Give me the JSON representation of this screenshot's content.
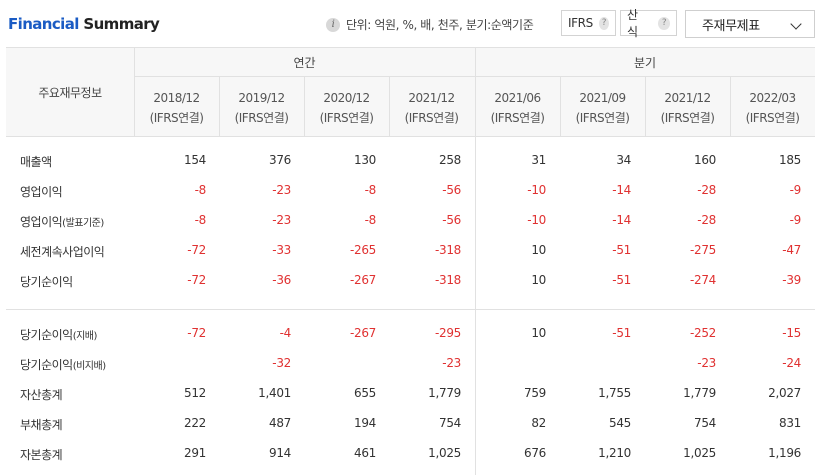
{
  "header": {
    "title_part1": "Financial",
    "title_part2": "Summary",
    "unit_text": "단위: 억원, %, 배, 천주, 분기:순액기준",
    "ifrs_label": "IFRS",
    "calc_label": "산식",
    "help_glyph": "?",
    "select_value": "주재무제표",
    "info_glyph": "i"
  },
  "table": {
    "row_header_label": "주요재무정보",
    "groups": [
      "연간",
      "분기"
    ],
    "columns": [
      {
        "period": "2018/12",
        "basis": "(IFRS연결)"
      },
      {
        "period": "2019/12",
        "basis": "(IFRS연결)"
      },
      {
        "period": "2020/12",
        "basis": "(IFRS연결)"
      },
      {
        "period": "2021/12",
        "basis": "(IFRS연결)"
      },
      {
        "period": "2021/06",
        "basis": "(IFRS연결)"
      },
      {
        "period": "2021/09",
        "basis": "(IFRS연결)"
      },
      {
        "period": "2021/12",
        "basis": "(IFRS연결)"
      },
      {
        "period": "2022/03",
        "basis": "(IFRS연결)"
      }
    ],
    "rows": [
      {
        "label": "매출액",
        "suffix": "",
        "values": [
          "154",
          "376",
          "130",
          "258",
          "31",
          "34",
          "160",
          "185"
        ]
      },
      {
        "label": "영업이익",
        "suffix": "",
        "values": [
          "-8",
          "-23",
          "-8",
          "-56",
          "-10",
          "-14",
          "-28",
          "-9"
        ]
      },
      {
        "label": "영업이익",
        "suffix": "(발표기준)",
        "values": [
          "-8",
          "-23",
          "-8",
          "-56",
          "-10",
          "-14",
          "-28",
          "-9"
        ]
      },
      {
        "label": "세전계속사업이익",
        "suffix": "",
        "values": [
          "-72",
          "-33",
          "-265",
          "-318",
          "10",
          "-51",
          "-275",
          "-47"
        ]
      },
      {
        "label": "당기순이익",
        "suffix": "",
        "values": [
          "-72",
          "-36",
          "-267",
          "-318",
          "10",
          "-51",
          "-274",
          "-39"
        ]
      },
      {
        "label": "당기순이익",
        "suffix": "(지배)",
        "values": [
          "-72",
          "-4",
          "-267",
          "-295",
          "10",
          "-51",
          "-252",
          "-15"
        ]
      },
      {
        "label": "당기순이익",
        "suffix": "(비지배)",
        "values": [
          "",
          "-32",
          "",
          "-23",
          "",
          "",
          "-23",
          "-24"
        ]
      },
      {
        "label": "자산총계",
        "suffix": "",
        "values": [
          "512",
          "1,401",
          "655",
          "1,779",
          "759",
          "1,755",
          "1,779",
          "2,027"
        ]
      },
      {
        "label": "부채총계",
        "suffix": "",
        "values": [
          "222",
          "487",
          "194",
          "754",
          "82",
          "545",
          "754",
          "831"
        ]
      },
      {
        "label": "자본총계",
        "suffix": "",
        "values": [
          "291",
          "914",
          "461",
          "1,025",
          "676",
          "1,210",
          "1,025",
          "1,196"
        ]
      }
    ]
  },
  "colors": {
    "accent": "#1a5bc4",
    "negative": "#e03131",
    "border": "#e1e1e1",
    "header_bg": "#f7f7f7"
  }
}
